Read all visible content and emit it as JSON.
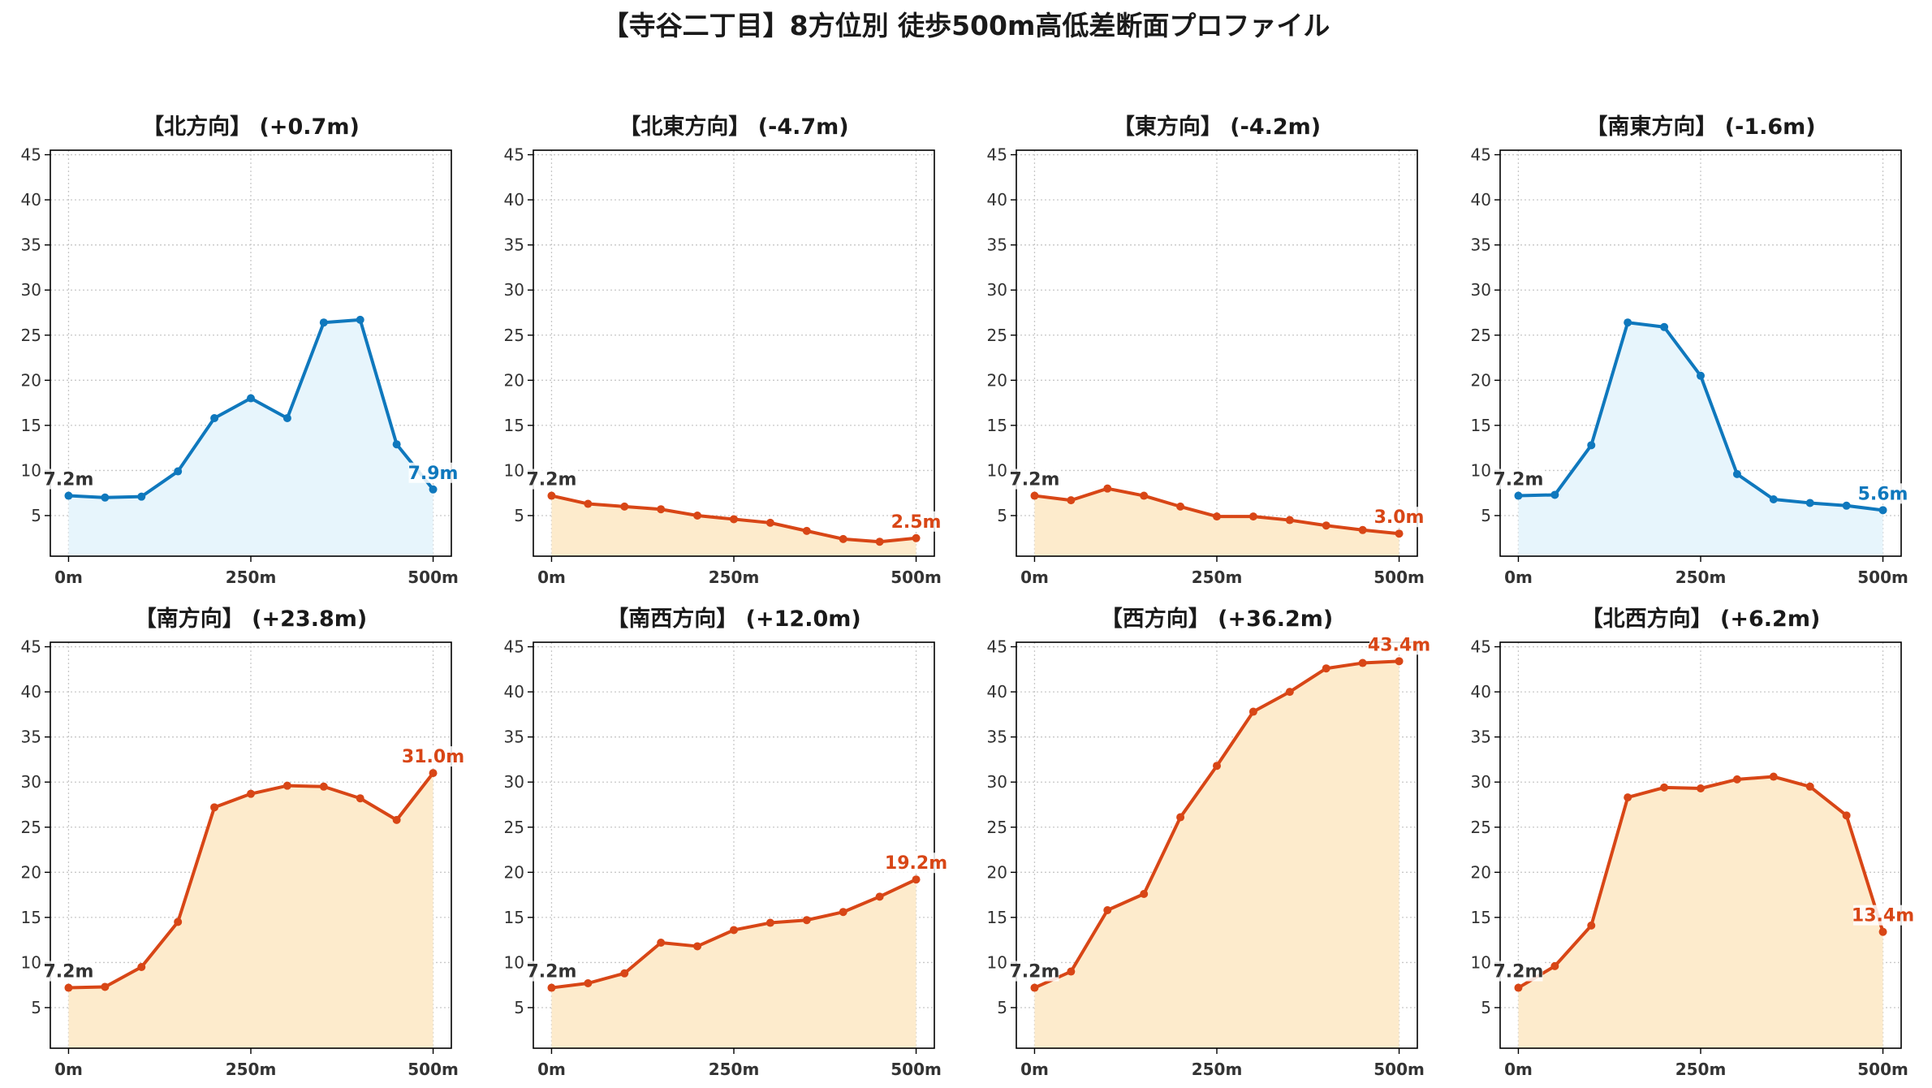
{
  "figure": {
    "title": "【寺谷二丁目】8方位別 徒歩500m高低差断面プロファイル"
  },
  "colors": {
    "up": "#0f78bd",
    "up_fill": "#e7f5fc",
    "down": "#d84616",
    "down_fill": "#fdebcc"
  },
  "chart_data": [
    {
      "type": "area",
      "title": "【北方向】 (+0.7m)",
      "trend": "up",
      "x": [
        0,
        50,
        100,
        150,
        200,
        250,
        300,
        350,
        400,
        450,
        500
      ],
      "y": [
        7.2,
        7.0,
        7.1,
        9.9,
        15.8,
        18.0,
        15.8,
        26.4,
        26.7,
        12.9,
        7.9
      ],
      "start_label": "7.2m",
      "end_label": "7.9m",
      "xticks": [
        "0m",
        "250m",
        "500m"
      ],
      "yticks": [
        "5",
        "10",
        "15",
        "20",
        "25",
        "30",
        "35",
        "40",
        "45"
      ],
      "ylim": [
        0.5,
        45.5
      ],
      "xlim": [
        -25,
        525
      ],
      "grid": true
    },
    {
      "type": "area",
      "title": "【北東方向】 (-4.7m)",
      "trend": "down",
      "x": [
        0,
        50,
        100,
        150,
        200,
        250,
        300,
        350,
        400,
        450,
        500
      ],
      "y": [
        7.2,
        6.3,
        6.0,
        5.7,
        5.0,
        4.6,
        4.2,
        3.3,
        2.4,
        2.1,
        2.5
      ],
      "start_label": "7.2m",
      "end_label": "2.5m",
      "xticks": [
        "0m",
        "250m",
        "500m"
      ],
      "yticks": [
        "5",
        "10",
        "15",
        "20",
        "25",
        "30",
        "35",
        "40",
        "45"
      ],
      "ylim": [
        0.5,
        45.5
      ],
      "xlim": [
        -25,
        525
      ],
      "grid": true
    },
    {
      "type": "area",
      "title": "【東方向】 (-4.2m)",
      "trend": "down",
      "x": [
        0,
        50,
        100,
        150,
        200,
        250,
        300,
        350,
        400,
        450,
        500
      ],
      "y": [
        7.2,
        6.7,
        8.0,
        7.2,
        6.0,
        4.9,
        4.9,
        4.5,
        3.9,
        3.4,
        3.0
      ],
      "start_label": "7.2m",
      "end_label": "3.0m",
      "xticks": [
        "0m",
        "250m",
        "500m"
      ],
      "yticks": [
        "5",
        "10",
        "15",
        "20",
        "25",
        "30",
        "35",
        "40",
        "45"
      ],
      "ylim": [
        0.5,
        45.5
      ],
      "xlim": [
        -25,
        525
      ],
      "grid": true
    },
    {
      "type": "area",
      "title": "【南東方向】 (-1.6m)",
      "trend": "up",
      "x": [
        0,
        50,
        100,
        150,
        200,
        250,
        300,
        350,
        400,
        450,
        500
      ],
      "y": [
        7.2,
        7.3,
        12.8,
        26.4,
        25.9,
        20.5,
        9.6,
        6.8,
        6.4,
        6.1,
        5.6
      ],
      "start_label": "7.2m",
      "end_label": "5.6m",
      "xticks": [
        "0m",
        "250m",
        "500m"
      ],
      "yticks": [
        "5",
        "10",
        "15",
        "20",
        "25",
        "30",
        "35",
        "40",
        "45"
      ],
      "ylim": [
        0.5,
        45.5
      ],
      "xlim": [
        -25,
        525
      ],
      "grid": true
    },
    {
      "type": "area",
      "title": "【南方向】 (+23.8m)",
      "trend": "down",
      "x": [
        0,
        50,
        100,
        150,
        200,
        250,
        300,
        350,
        400,
        450,
        500
      ],
      "y": [
        7.2,
        7.3,
        9.5,
        14.5,
        27.2,
        28.7,
        29.6,
        29.5,
        28.2,
        25.8,
        31.0
      ],
      "start_label": "7.2m",
      "end_label": "31.0m",
      "xticks": [
        "0m",
        "250m",
        "500m"
      ],
      "yticks": [
        "5",
        "10",
        "15",
        "20",
        "25",
        "30",
        "35",
        "40",
        "45"
      ],
      "ylim": [
        0.5,
        45.5
      ],
      "xlim": [
        -25,
        525
      ],
      "grid": true
    },
    {
      "type": "area",
      "title": "【南西方向】 (+12.0m)",
      "trend": "down",
      "x": [
        0,
        50,
        100,
        150,
        200,
        250,
        300,
        350,
        400,
        450,
        500
      ],
      "y": [
        7.2,
        7.7,
        8.8,
        12.2,
        11.8,
        13.6,
        14.4,
        14.7,
        15.6,
        17.3,
        19.2
      ],
      "start_label": "7.2m",
      "end_label": "19.2m",
      "xticks": [
        "0m",
        "250m",
        "500m"
      ],
      "yticks": [
        "5",
        "10",
        "15",
        "20",
        "25",
        "30",
        "35",
        "40",
        "45"
      ],
      "ylim": [
        0.5,
        45.5
      ],
      "xlim": [
        -25,
        525
      ],
      "grid": true
    },
    {
      "type": "area",
      "title": "【西方向】 (+36.2m)",
      "trend": "down",
      "x": [
        0,
        50,
        100,
        150,
        200,
        250,
        300,
        350,
        400,
        450,
        500
      ],
      "y": [
        7.2,
        9.0,
        15.8,
        17.6,
        26.1,
        31.8,
        37.8,
        40.0,
        42.6,
        43.2,
        43.4
      ],
      "start_label": "7.2m",
      "end_label": "43.4m",
      "xticks": [
        "0m",
        "250m",
        "500m"
      ],
      "yticks": [
        "5",
        "10",
        "15",
        "20",
        "25",
        "30",
        "35",
        "40",
        "45"
      ],
      "ylim": [
        0.5,
        45.5
      ],
      "xlim": [
        -25,
        525
      ],
      "grid": true
    },
    {
      "type": "area",
      "title": "【北西方向】 (+6.2m)",
      "trend": "down",
      "x": [
        0,
        50,
        100,
        150,
        200,
        250,
        300,
        350,
        400,
        450,
        500
      ],
      "y": [
        7.2,
        9.6,
        14.1,
        28.3,
        29.4,
        29.3,
        30.3,
        30.6,
        29.5,
        26.3,
        13.4
      ],
      "start_label": "7.2m",
      "end_label": "13.4m",
      "xticks": [
        "0m",
        "250m",
        "500m"
      ],
      "yticks": [
        "5",
        "10",
        "15",
        "20",
        "25",
        "30",
        "35",
        "40",
        "45"
      ],
      "ylim": [
        0.5,
        45.5
      ],
      "xlim": [
        -25,
        525
      ],
      "grid": true
    }
  ]
}
